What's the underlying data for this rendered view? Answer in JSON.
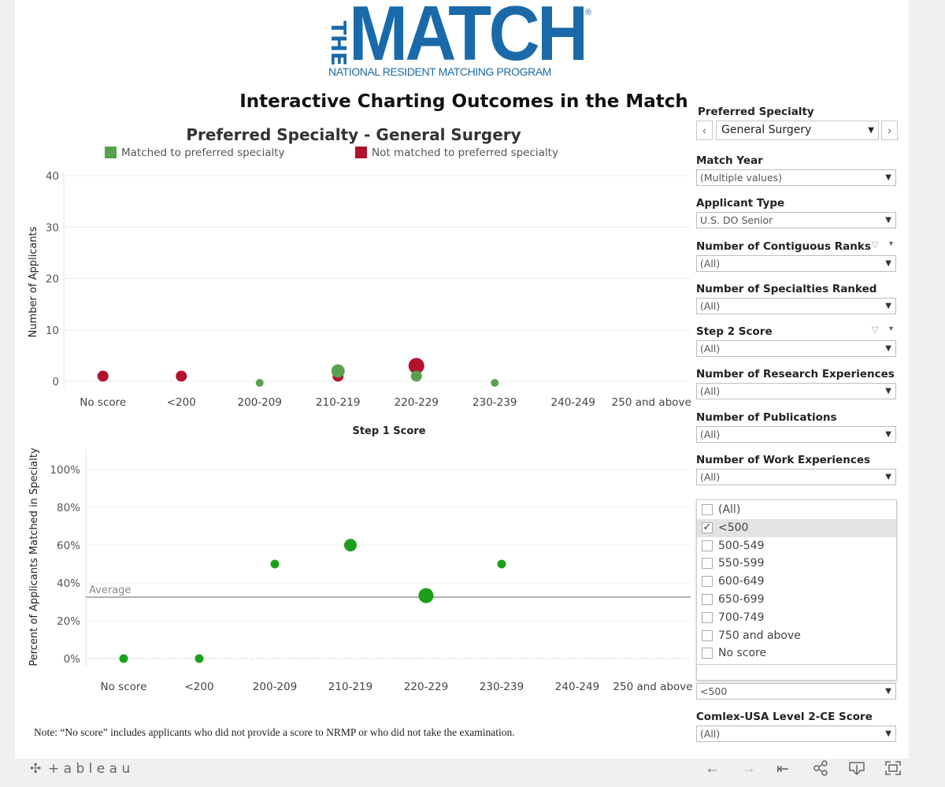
{
  "logo": {
    "word": "THE MATCH",
    "the": "THE",
    "match": "MATCH",
    "subtitle": "NATIONAL RESIDENT MATCHING PROGRAM",
    "registered": "®"
  },
  "colors": {
    "brand": "#1a6aaa",
    "matched": "#59a14f",
    "not_matched": "#b3112e",
    "pct": "#1aa01a",
    "average_line": "#b0b0b0"
  },
  "dashboard_title": "Interactive Charting Outcomes in the Match",
  "chart_title": "Preferred Specialty - General Surgery",
  "legend": {
    "matched": "Matched to preferred specialty",
    "not_matched": "Not matched to preferred specialty"
  },
  "chart_data": [
    {
      "type": "scatter",
      "title": "Preferred Specialty - General Surgery",
      "xlabel": "Step 1 Score",
      "ylabel": "Number of Applicants",
      "categories": [
        "No score",
        "<200",
        "200-209",
        "210-219",
        "220-229",
        "230-239",
        "240-249",
        "250 and above"
      ],
      "ylim": [
        0,
        40
      ],
      "yticks": [
        "0",
        "10",
        "20",
        "30",
        "40"
      ],
      "series": [
        {
          "name": "Not matched to preferred specialty",
          "values": [
            1,
            1,
            null,
            1,
            3,
            null,
            null,
            null
          ]
        },
        {
          "name": "Matched to preferred specialty",
          "values": [
            null,
            null,
            0,
            2,
            1,
            0,
            null,
            null
          ]
        }
      ]
    },
    {
      "type": "scatter",
      "xlabel": "",
      "ylabel": "Percent of Applicants Matched in Specialty",
      "categories": [
        "No score",
        "<200",
        "200-209",
        "210-219",
        "220-229",
        "230-239",
        "240-249",
        "250 and above"
      ],
      "ylim": [
        0,
        1.1
      ],
      "yticks": [
        "0%",
        "20%",
        "40%",
        "60%",
        "80%",
        "100%"
      ],
      "values": [
        0,
        0,
        0.5,
        0.6,
        0.333,
        0.5,
        null,
        null
      ],
      "sizes": [
        1,
        1,
        1,
        2,
        3,
        1,
        null,
        null
      ],
      "average": 0.325,
      "average_label": "Average"
    }
  ],
  "note": "Note: “No score” includes applicants who did not provide a score to NRMP or who did not take the examination.",
  "filters": {
    "preferred_specialty": {
      "label": "Preferred Specialty",
      "value": "General Surgery",
      "prev": "‹",
      "next": "›"
    },
    "match_year": {
      "label": "Match Year",
      "value": "(Multiple values)"
    },
    "applicant_type": {
      "label": "Applicant Type",
      "value": "U.S. DO Senior"
    },
    "contiguous_ranks": {
      "label": "Number of Contiguous Ranks",
      "value": "(All)"
    },
    "specialties_ranked": {
      "label": "Number of Specialties Ranked",
      "value": "(All)"
    },
    "step2": {
      "label": "Step 2 Score",
      "value": "(All)"
    },
    "research": {
      "label": "Number of Research Experiences",
      "value": "(All)"
    },
    "publications": {
      "label": "Number of Publications",
      "value": "(All)"
    },
    "work": {
      "label": "Number of Work Experiences",
      "value": "(All)"
    },
    "comlex1": {
      "value": "<500"
    },
    "comlex2": {
      "label": "Comlex-USA Level 2-CE Score",
      "value": "(All)"
    }
  },
  "dropdown": {
    "options": [
      {
        "label": "(All)",
        "checked": false
      },
      {
        "label": "<500",
        "checked": true
      },
      {
        "label": "500-549",
        "checked": false
      },
      {
        "label": "550-599",
        "checked": false
      },
      {
        "label": "600-649",
        "checked": false
      },
      {
        "label": "650-699",
        "checked": false
      },
      {
        "label": "700-749",
        "checked": false
      },
      {
        "label": "750 and above",
        "checked": false
      },
      {
        "label": "No score",
        "checked": false
      }
    ],
    "check_glyph": "✓"
  },
  "toolbar": {
    "brand": "+ a b l e a u",
    "icons": [
      "undo-icon",
      "redo-icon",
      "revert-icon",
      "share-icon",
      "download-icon",
      "fullscreen-icon"
    ]
  }
}
